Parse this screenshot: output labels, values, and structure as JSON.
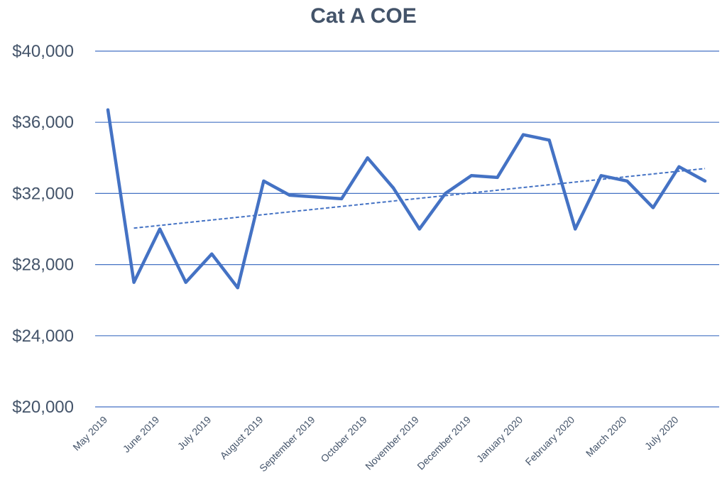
{
  "chart_data": {
    "type": "line",
    "title": "Cat A COE",
    "xlabel": "",
    "ylabel": "",
    "ylim": [
      20000,
      40000
    ],
    "yticks": [
      {
        "value": 20000,
        "label": "$20,000"
      },
      {
        "value": 24000,
        "label": "$24,000"
      },
      {
        "value": 28000,
        "label": "$28,000"
      },
      {
        "value": 32000,
        "label": "$32,000"
      },
      {
        "value": 36000,
        "label": "$36,000"
      },
      {
        "value": 40000,
        "label": "$40,000"
      }
    ],
    "x": [
      "May 2019",
      "",
      "June 2019",
      "",
      "July 2019",
      "",
      "August 2019",
      "",
      "September 2019",
      "",
      "October 2019",
      "",
      "November 2019",
      "",
      "December 2019",
      "",
      "January 2020",
      "",
      "February 2020",
      "",
      "March 2020",
      "",
      "July 2020",
      ""
    ],
    "xtick_labels": [
      "May 2019",
      "June 2019",
      "July 2019",
      "August 2019",
      "September 2019",
      "October 2019",
      "November 2019",
      "December 2019",
      "January 2020",
      "February 2020",
      "March 2020",
      "July 2020"
    ],
    "series": [
      {
        "values": [
          36700,
          27000,
          30000,
          27000,
          28600,
          26700,
          32700,
          31900,
          31800,
          31700,
          34000,
          32300,
          30000,
          32000,
          33000,
          32900,
          35300,
          35000,
          30000,
          33000,
          32700,
          31200,
          33500,
          32700
        ],
        "color": "#4472c4"
      }
    ],
    "trendline": {
      "style": "dashed",
      "color": "#4472c4",
      "start": 30050,
      "end": 33400
    },
    "grid": true,
    "legend": "none"
  }
}
